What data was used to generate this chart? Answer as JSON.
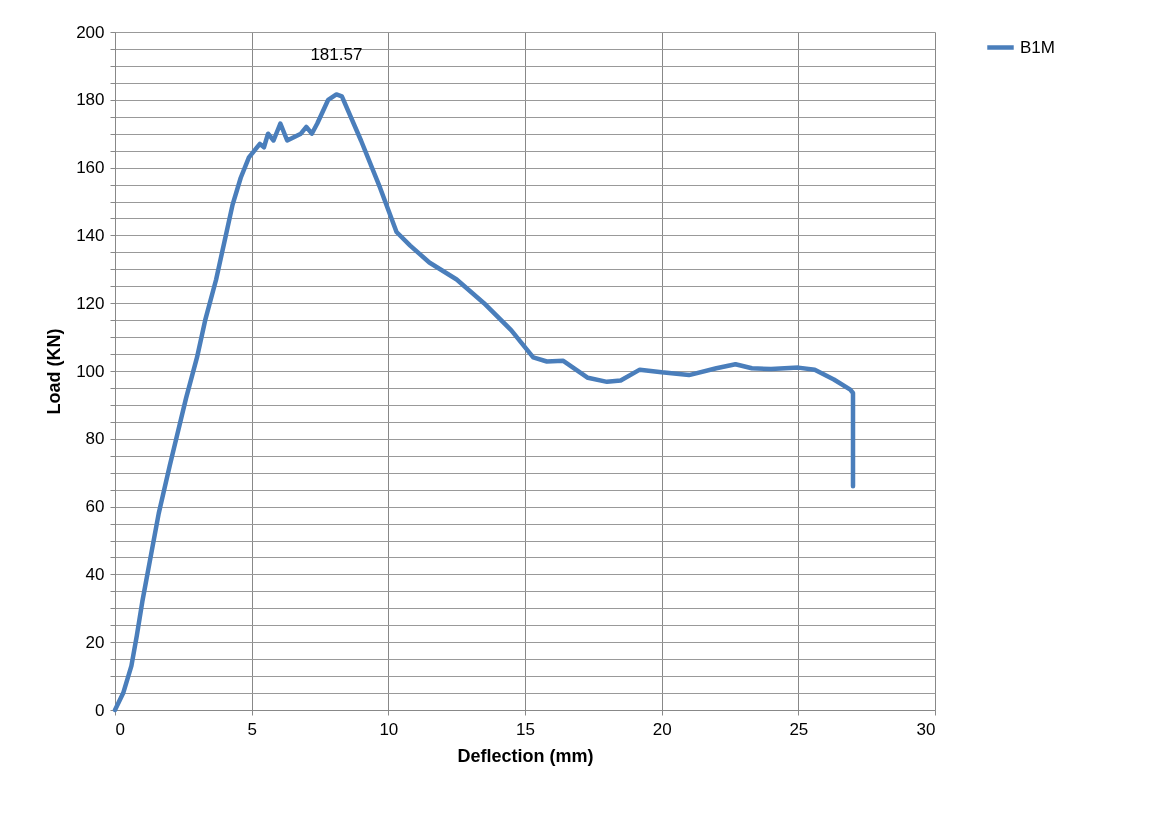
{
  "chart_data": {
    "type": "line",
    "xlabel": "Deflection (mm)",
    "ylabel": "Load (KN)",
    "xlim": [
      0,
      30
    ],
    "xticks": [
      0,
      5,
      10,
      15,
      20,
      25,
      30
    ],
    "ylim": [
      0,
      200
    ],
    "yticks": [
      0,
      {
        "value": 5,
        "label": null
      },
      {
        "value": 10,
        "label": null
      },
      {
        "value": 15,
        "label": null
      },
      20,
      {
        "value": 25,
        "label": null
      },
      {
        "value": 30,
        "label": null
      },
      {
        "value": 35,
        "label": null
      },
      40,
      {
        "value": 45,
        "label": null
      },
      {
        "value": 50,
        "label": null
      },
      {
        "value": 55,
        "label": null
      },
      60,
      {
        "value": 65,
        "label": null
      },
      {
        "value": 70,
        "label": null
      },
      {
        "value": 75,
        "label": null
      },
      80,
      {
        "value": 85,
        "label": null
      },
      {
        "value": 90,
        "label": null
      },
      {
        "value": 95,
        "label": null
      },
      100,
      {
        "value": 105,
        "label": null
      },
      {
        "value": 110,
        "label": null
      },
      {
        "value": 115,
        "label": null
      },
      120,
      {
        "value": 125,
        "label": null
      },
      {
        "value": 130,
        "label": null
      },
      {
        "value": 135,
        "label": null
      },
      140,
      {
        "value": 145,
        "label": null
      },
      {
        "value": 150,
        "label": null
      },
      {
        "value": 155,
        "label": null
      },
      160,
      {
        "value": 165,
        "label": null
      },
      {
        "value": 170,
        "label": null
      },
      {
        "value": 175,
        "label": null
      },
      180,
      {
        "value": 185,
        "label": null
      },
      {
        "value": 190,
        "label": null
      },
      {
        "value": 195,
        "label": null
      },
      200
    ],
    "grid": true,
    "legend": "right",
    "marker": "none",
    "line_style": "solid",
    "annotations": [
      {
        "text": "181.57",
        "x": 8.1,
        "y": 181.57
      }
    ],
    "series": [
      {
        "name": "B1M",
        "color": "#4a7ebb",
        "x": [
          0,
          0.3,
          0.6,
          0.8,
          1.0,
          1.3,
          1.6,
          2.0,
          2.3,
          2.6,
          3.0,
          3.3,
          3.7,
          4.0,
          4.3,
          4.6,
          4.9,
          5.1,
          5.3,
          5.45,
          5.6,
          5.8,
          6.05,
          6.3,
          6.8,
          7.0,
          7.2,
          7.4,
          7.8,
          8.1,
          8.3,
          9.0,
          9.7,
          10.3,
          10.8,
          11.5,
          12.5,
          13.5,
          14.5,
          15.3,
          15.8,
          16.4,
          17.3,
          18.0,
          18.5,
          19.2,
          20.0,
          21.0,
          22.0,
          22.7,
          23.3,
          24.0,
          25.0,
          25.6,
          26.3,
          26.9,
          27.0,
          27.0
        ],
        "values": [
          0,
          5,
          13,
          22,
          32,
          45,
          58,
          72,
          82,
          92,
          104,
          115,
          127,
          138,
          149,
          157,
          163,
          165,
          167,
          166,
          170,
          168,
          173,
          168,
          170,
          172,
          170,
          173,
          180,
          181.57,
          181,
          168,
          154,
          141,
          137,
          132,
          127,
          120,
          112,
          104,
          102.8,
          103,
          98,
          96.8,
          97.2,
          100.4,
          99.6,
          98.8,
          100.8,
          102,
          100.8,
          100.6,
          101,
          100.4,
          97.5,
          94.5,
          93.5,
          66
        ]
      }
    ]
  }
}
